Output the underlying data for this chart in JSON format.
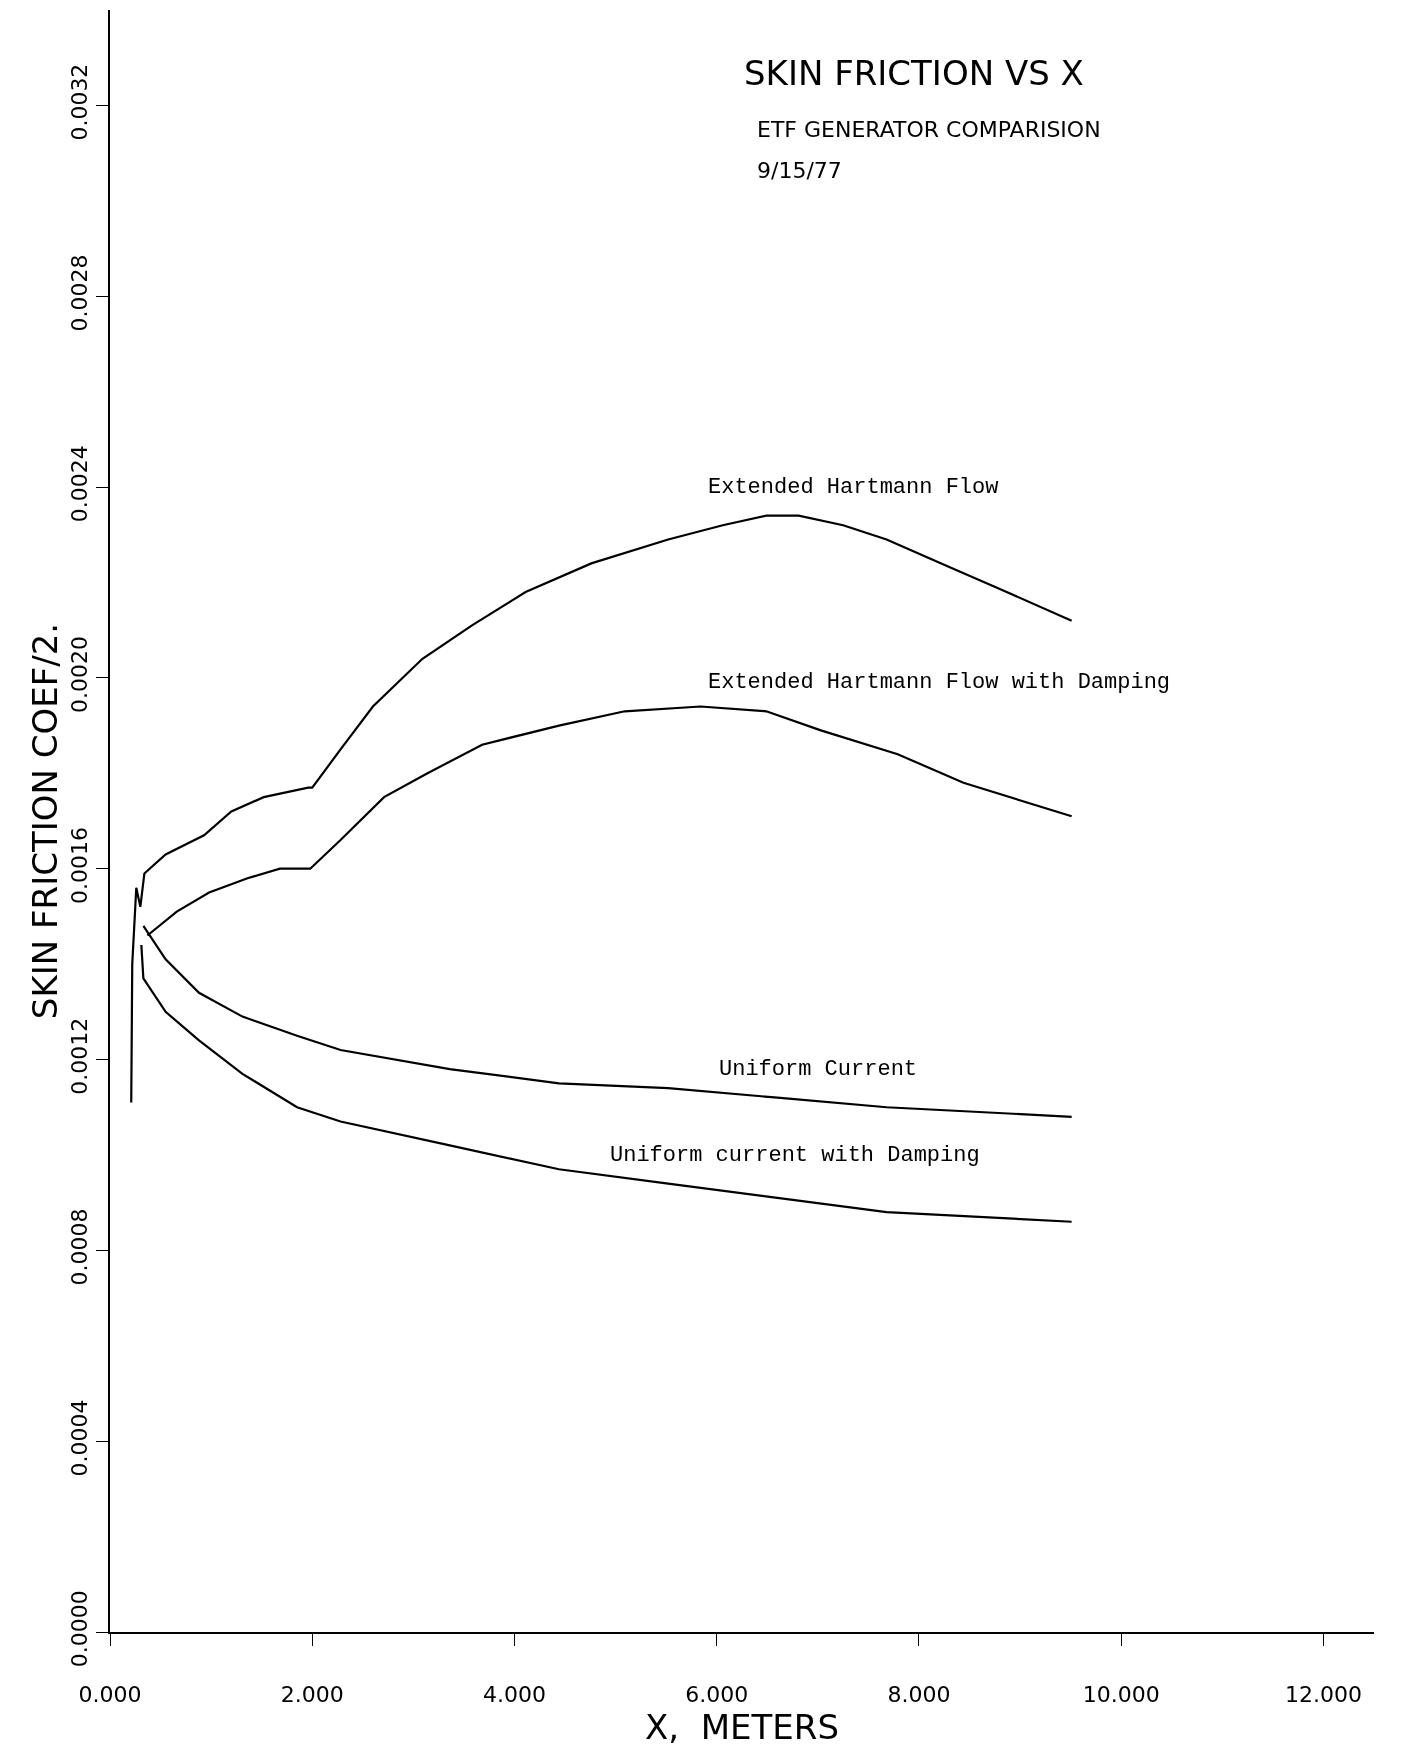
{
  "chart_data": {
    "type": "line",
    "title": "SKIN FRICTION VS X",
    "subtitle": "ETF GENERATOR COMPARISION",
    "annotations": [
      "9/15/77"
    ],
    "xlabel": "X,  METERS",
    "ylabel": "SKIN FRICTION COEF/2.",
    "xlim": [
      0,
      12.5
    ],
    "ylim": [
      0,
      0.0034
    ],
    "xticks": [
      {
        "value": 0,
        "label": "0.000"
      },
      {
        "value": 2,
        "label": "2.000"
      },
      {
        "value": 4,
        "label": "4.000"
      },
      {
        "value": 6,
        "label": "6.000"
      },
      {
        "value": 8,
        "label": "8.000"
      },
      {
        "value": 10,
        "label": "10.000"
      },
      {
        "value": 12,
        "label": "12.000"
      }
    ],
    "yticks": [
      {
        "value": 0,
        "label": "0.0000"
      },
      0.0004,
      0.0008,
      0.0012,
      0.0016,
      {
        "value": 0.002,
        "label": "0.0020"
      },
      0.0024,
      0.0028,
      0.0032
    ],
    "legend": false,
    "marker": "none",
    "line_style": "solid",
    "series": [
      {
        "name": "Extended Hartmann Flow",
        "color": "#000000",
        "x": [
          0.21,
          0.22,
          0.26,
          0.3,
          0.34,
          0.55,
          0.55,
          0.93,
          1.2,
          1.52,
          1.96,
          2.0,
          2.28,
          2.6,
          3.09,
          3.58,
          4.11,
          4.76,
          5.52,
          6.06,
          6.49,
          6.81,
          7.25,
          7.68,
          8.22,
          8.76,
          9.51
        ],
        "values": [
          0.00111,
          0.0014,
          0.00156,
          0.00152,
          0.00159,
          0.00163,
          0.00163,
          0.00167,
          0.00172,
          0.00175,
          0.00177,
          0.00177,
          0.00185,
          0.00194,
          0.00204,
          0.00211,
          0.00218,
          0.00224,
          0.00229,
          0.00232,
          0.00234,
          0.00234,
          0.00232,
          0.00229,
          0.00224,
          0.00219,
          0.00212
        ]
      },
      {
        "name": "Extended Hartmann Flow with Damping",
        "color": "#000000",
        "x": [
          0.37,
          0.66,
          0.98,
          1.36,
          1.68,
          1.98,
          2.28,
          2.71,
          3.14,
          3.68,
          4.44,
          5.09,
          5.84,
          6.49,
          7.03,
          7.79,
          8.44,
          9.51
        ],
        "values": [
          0.00146,
          0.00151,
          0.00155,
          0.00158,
          0.0016,
          0.0016,
          0.00166,
          0.00175,
          0.0018,
          0.00186,
          0.0019,
          0.00193,
          0.00194,
          0.00193,
          0.00189,
          0.00184,
          0.00178,
          0.00171
        ]
      },
      {
        "name": "Uniform Current",
        "color": "#000000",
        "x": [
          0.33,
          0.55,
          0.88,
          1.31,
          1.85,
          2.28,
          3.36,
          4.44,
          5.52,
          6.6,
          7.68,
          9.51
        ],
        "values": [
          0.00148,
          0.00141,
          0.00134,
          0.00129,
          0.00125,
          0.00122,
          0.00118,
          0.00115,
          0.00114,
          0.00112,
          0.0011,
          0.00108
        ]
      },
      {
        "name": "Uniform current with Damping",
        "color": "#000000",
        "x": [
          0.31,
          0.33,
          0.55,
          0.88,
          1.31,
          1.85,
          2.28,
          3.36,
          4.44,
          5.52,
          6.6,
          7.68,
          9.51
        ],
        "values": [
          0.00144,
          0.00137,
          0.0013,
          0.00124,
          0.00117,
          0.0011,
          0.00107,
          0.00102,
          0.00097,
          0.00094,
          0.00091,
          0.00088,
          0.00086
        ]
      }
    ]
  }
}
